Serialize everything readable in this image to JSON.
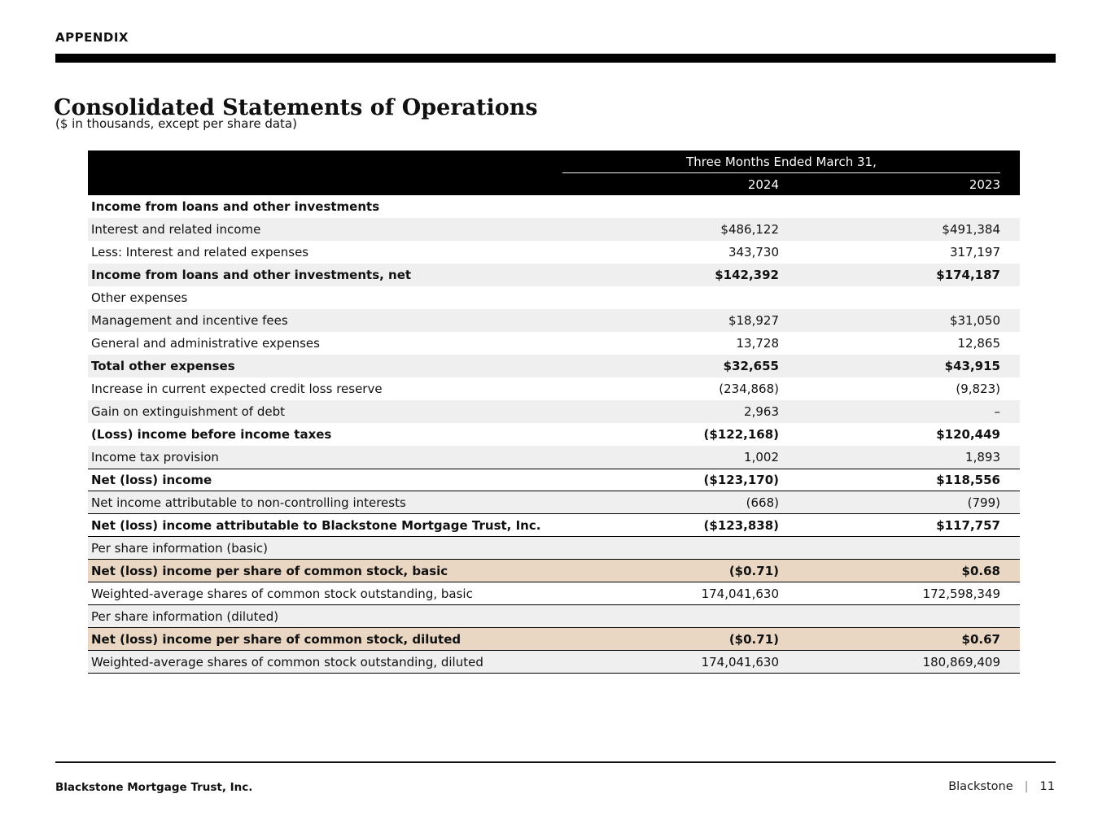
{
  "header": {
    "appendix_label": "APPENDIX",
    "title": "Consolidated Statements of Operations",
    "subtitle": "($ in thousands, except per share data)"
  },
  "table": {
    "period_header": "Three Months Ended March 31,",
    "columns": [
      "2024",
      "2023"
    ],
    "rows": [
      {
        "label": "Income from loans and other investments",
        "v2024": "",
        "v2023": ""
      },
      {
        "label": "Interest and related income",
        "v2024": "$486,122",
        "v2023": "$491,384"
      },
      {
        "label": "Less: Interest and related expenses",
        "v2024": "343,730",
        "v2023": "317,197"
      },
      {
        "label": "Income from loans and other investments, net",
        "v2024": "$142,392",
        "v2023": "$174,187"
      },
      {
        "label": "Other expenses",
        "v2024": "",
        "v2023": ""
      },
      {
        "label": "Management and incentive fees",
        "v2024": "$18,927",
        "v2023": "$31,050"
      },
      {
        "label": "General and administrative expenses",
        "v2024": "13,728",
        "v2023": "12,865"
      },
      {
        "label": "Total other expenses",
        "v2024": "$32,655",
        "v2023": "$43,915"
      },
      {
        "label": "Increase in current expected credit loss reserve",
        "v2024": "(234,868)",
        "v2023": "(9,823)"
      },
      {
        "label": "Gain on extinguishment of debt",
        "v2024": "2,963",
        "v2023": "–"
      },
      {
        "label": "(Loss) income before income taxes",
        "v2024": "($122,168)",
        "v2023": "$120,449"
      },
      {
        "label": "Income tax provision",
        "v2024": "1,002",
        "v2023": "1,893"
      },
      {
        "label": "Net (loss) income",
        "v2024": "($123,170)",
        "v2023": "$118,556"
      },
      {
        "label": "Net income attributable to non-controlling interests",
        "v2024": "(668)",
        "v2023": "(799)"
      },
      {
        "label": "Net (loss) income attributable to Blackstone Mortgage Trust, Inc.",
        "v2024": "($123,838)",
        "v2023": "$117,757"
      },
      {
        "label": "Per share information (basic)",
        "v2024": "",
        "v2023": ""
      },
      {
        "label": "Net (loss) income per share of common stock, basic",
        "v2024": "($0.71)",
        "v2023": "$0.68"
      },
      {
        "label": "Weighted-average shares of common stock outstanding, basic",
        "v2024": "174,041,630",
        "v2023": "172,598,349"
      },
      {
        "label": "Per share information (diluted)",
        "v2024": "",
        "v2023": ""
      },
      {
        "label": "Net (loss) income per share of common stock, diluted",
        "v2024": "($0.71)",
        "v2023": "$0.67"
      },
      {
        "label": "Weighted-average shares of common stock outstanding, diluted",
        "v2024": "174,041,630",
        "v2023": "180,869,409"
      }
    ]
  },
  "footer": {
    "company": "Blackstone Mortgage Trust, Inc.",
    "brand": "Blackstone",
    "divider": "|",
    "page_number": "11"
  },
  "colors": {
    "header_bg": "#000000",
    "row_shade": "#efefef",
    "highlight_tan": "#e9d7c4",
    "text": "#111111"
  }
}
